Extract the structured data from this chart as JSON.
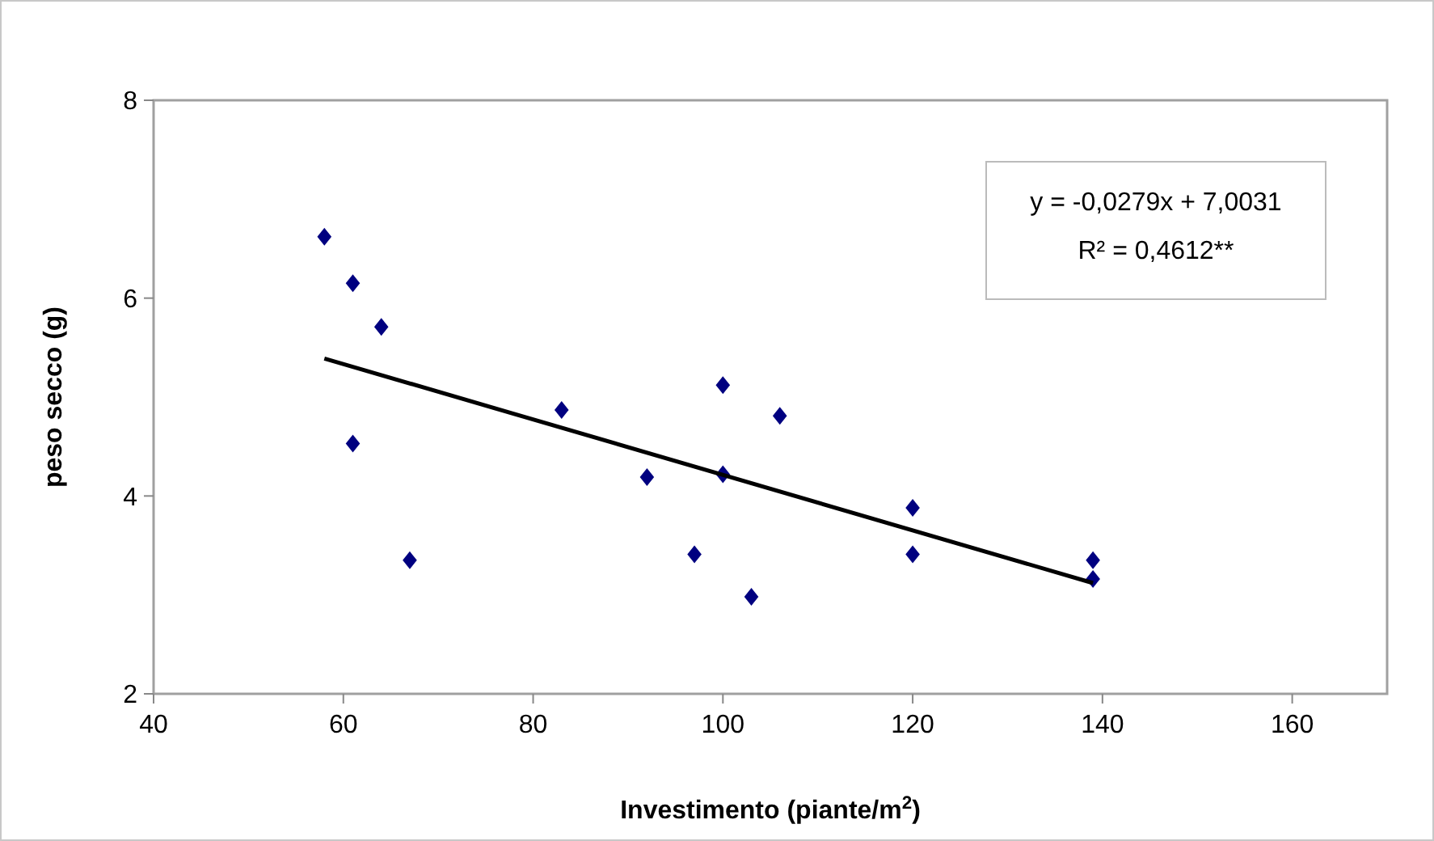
{
  "chart_data": {
    "type": "scatter",
    "xlabel": "Investimento (piante/m$^{2}$)",
    "ylabel": "peso secco (g)",
    "xlim": [
      40,
      170
    ],
    "xticks": [
      40,
      60,
      80,
      100,
      120,
      140,
      160
    ],
    "ylim": [
      2,
      8
    ],
    "yticks": [
      2,
      4,
      6,
      8
    ],
    "grid": false,
    "annotations": [
      "y = -0,0279x + 7,0031",
      "R² = 0,4612**"
    ],
    "series": [
      {
        "color": "#000080",
        "marker": "diamond",
        "x": [
          58,
          61,
          64,
          61,
          67,
          83,
          92,
          97,
          100,
          100,
          103,
          106,
          120,
          120,
          139,
          139
        ],
        "values": [
          6.62,
          6.15,
          5.71,
          4.53,
          3.35,
          4.87,
          4.19,
          3.41,
          5.12,
          4.22,
          2.98,
          4.81,
          3.88,
          3.41,
          3.35,
          3.16
        ]
      },
      {
        "type": "line",
        "color": "#000000",
        "marker": "none",
        "line_style": "solid",
        "x": [
          58,
          139
        ],
        "values": [
          5.39,
          3.12
        ]
      }
    ]
  }
}
